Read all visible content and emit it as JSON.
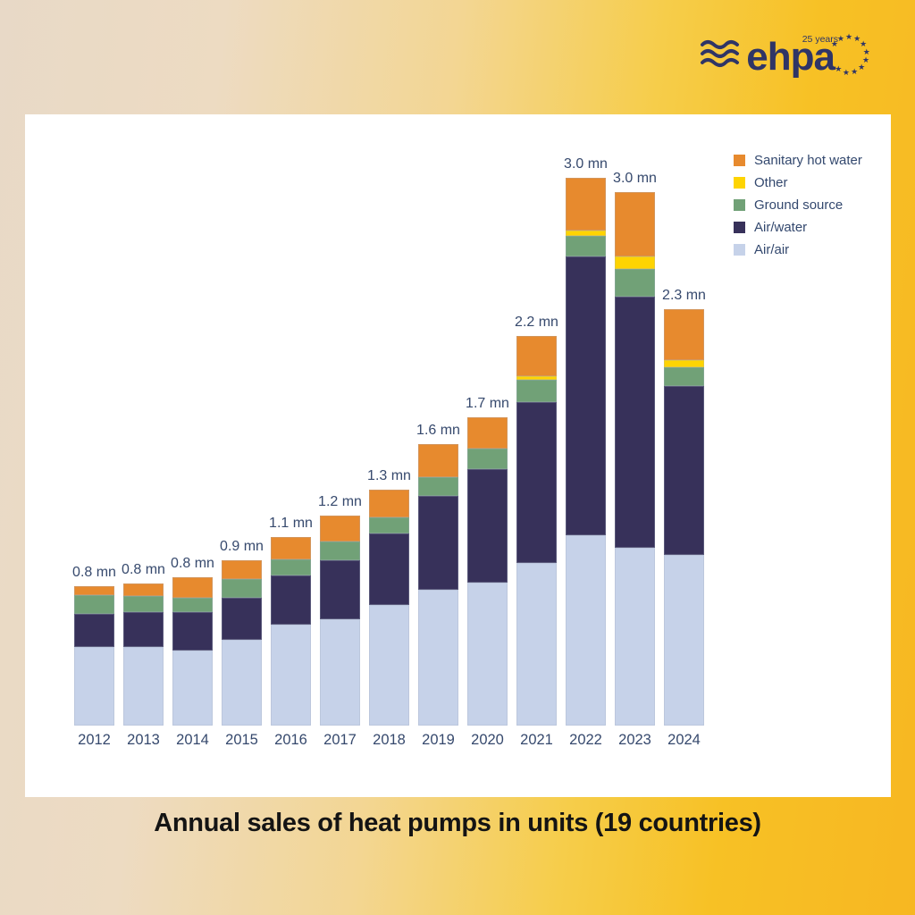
{
  "logo": {
    "brand": "ehpa",
    "anniversary": "25 years"
  },
  "title": "Annual sales of heat pumps in units (19 countries)",
  "colors": {
    "background_left": "#e8d9c7",
    "background_right": "#f7b722",
    "panel": "#ffffff",
    "logo_navy": "#2f3566",
    "label_text": "#36496d",
    "title_text": "#141414"
  },
  "chart_data": {
    "type": "bar",
    "stacked": true,
    "title": "Annual sales of heat pumps in units (19 countries)",
    "unit": "million units",
    "categories": [
      "2012",
      "2013",
      "2014",
      "2015",
      "2016",
      "2017",
      "2018",
      "2019",
      "2020",
      "2021",
      "2022",
      "2023",
      "2024"
    ],
    "totals_labels": [
      "0.8 mn",
      "0.8 mn",
      "0.8 mn",
      "0.9 mn",
      "1.1 mn",
      "1.2 mn",
      "1.3 mn",
      "1.6 mn",
      "1.7 mn",
      "2.2 mn",
      "3.0 mn",
      "3.0 mn",
      "2.3 mn"
    ],
    "totals_mn": [
      0.8,
      0.8,
      0.8,
      0.9,
      1.1,
      1.2,
      1.3,
      1.6,
      1.7,
      2.2,
      3.0,
      3.0,
      2.3
    ],
    "series": [
      {
        "name": "Air/air",
        "color": "#c6d2e9",
        "values": [
          0.43,
          0.43,
          0.41,
          0.47,
          0.55,
          0.58,
          0.66,
          0.74,
          0.78,
          0.89,
          1.04,
          0.97,
          0.93
        ]
      },
      {
        "name": "Air/water",
        "color": "#37315a",
        "values": [
          0.18,
          0.19,
          0.21,
          0.23,
          0.27,
          0.32,
          0.39,
          0.51,
          0.62,
          0.88,
          1.52,
          1.37,
          0.92
        ]
      },
      {
        "name": "Ground source",
        "color": "#71a177",
        "values": [
          0.1,
          0.09,
          0.08,
          0.1,
          0.09,
          0.1,
          0.09,
          0.1,
          0.11,
          0.12,
          0.11,
          0.15,
          0.1
        ]
      },
      {
        "name": "Other",
        "color": "#fed402",
        "values": [
          0,
          0,
          0,
          0,
          0,
          0,
          0,
          0,
          0,
          0.02,
          0.03,
          0.07,
          0.04
        ]
      },
      {
        "name": "Sanitary hot water",
        "color": "#e78a2e",
        "values": [
          0.05,
          0.07,
          0.11,
          0.1,
          0.12,
          0.14,
          0.15,
          0.18,
          0.17,
          0.22,
          0.29,
          0.35,
          0.28
        ]
      }
    ],
    "legend": {
      "position": "top-right",
      "order": [
        "Sanitary hot water",
        "Other",
        "Ground source",
        "Air/water",
        "Air/air"
      ]
    },
    "ylim": [
      0,
      3.1
    ],
    "grid": false,
    "axis": "none"
  }
}
